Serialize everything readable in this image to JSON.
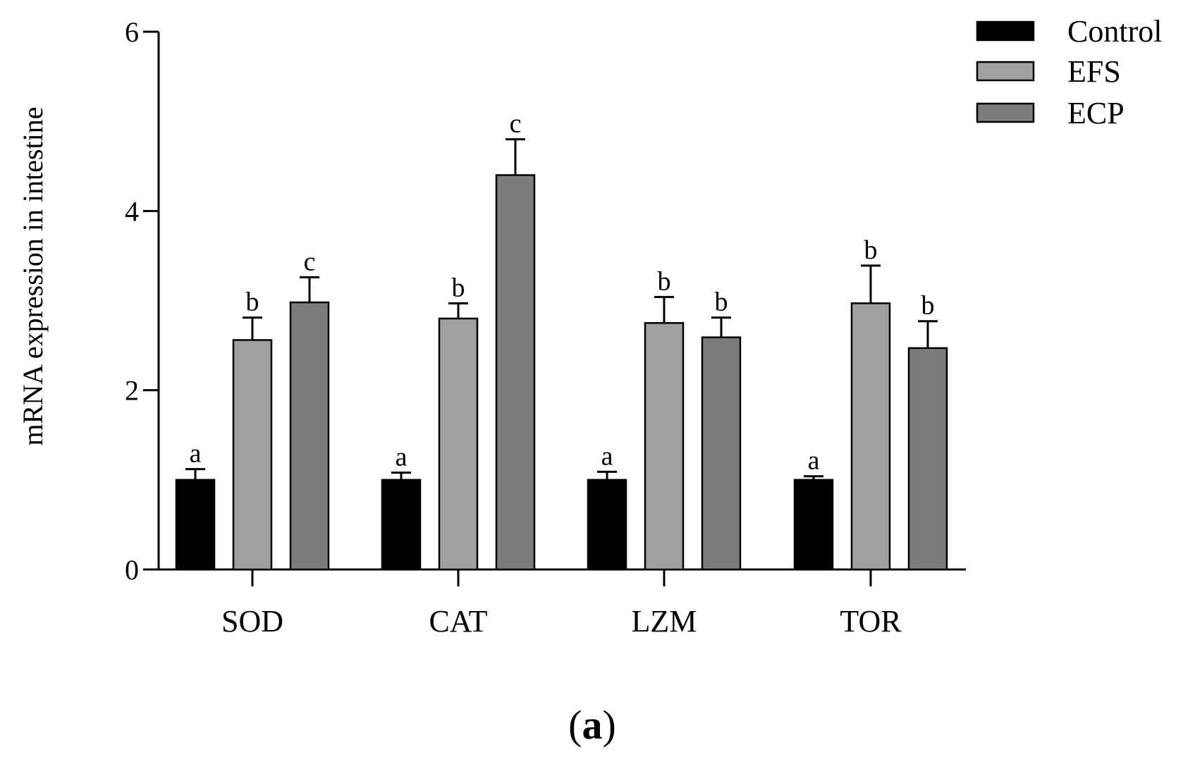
{
  "chart_data": {
    "type": "bar",
    "title": "",
    "xlabel": "",
    "ylabel": "mRNA expression in intestine",
    "ylim": [
      0,
      6
    ],
    "yticks": [
      0,
      2,
      4,
      6
    ],
    "categories": [
      "SOD",
      "CAT",
      "LZM",
      "TOR"
    ],
    "legend_position": "top-right",
    "series": [
      {
        "name": "Control",
        "color": "#000000",
        "values": [
          1.0,
          1.0,
          1.0,
          1.0
        ],
        "errors": [
          0.12,
          0.08,
          0.09,
          0.04
        ],
        "labels": [
          "a",
          "a",
          "a",
          "a"
        ]
      },
      {
        "name": "EFS",
        "color": "#a0a0a2",
        "values": [
          2.56,
          2.8,
          2.75,
          2.97
        ],
        "errors": [
          0.25,
          0.17,
          0.29,
          0.42
        ],
        "labels": [
          "b",
          "b",
          "b",
          "b"
        ]
      },
      {
        "name": "ECP",
        "color": "#7c7c7e",
        "values": [
          2.98,
          4.4,
          2.59,
          2.47
        ],
        "errors": [
          0.28,
          0.4,
          0.22,
          0.3
        ],
        "labels": [
          "c",
          "c",
          "b",
          "b"
        ]
      }
    ],
    "panel_label": {
      "open": "(",
      "letter": "a",
      "close": ")"
    }
  }
}
